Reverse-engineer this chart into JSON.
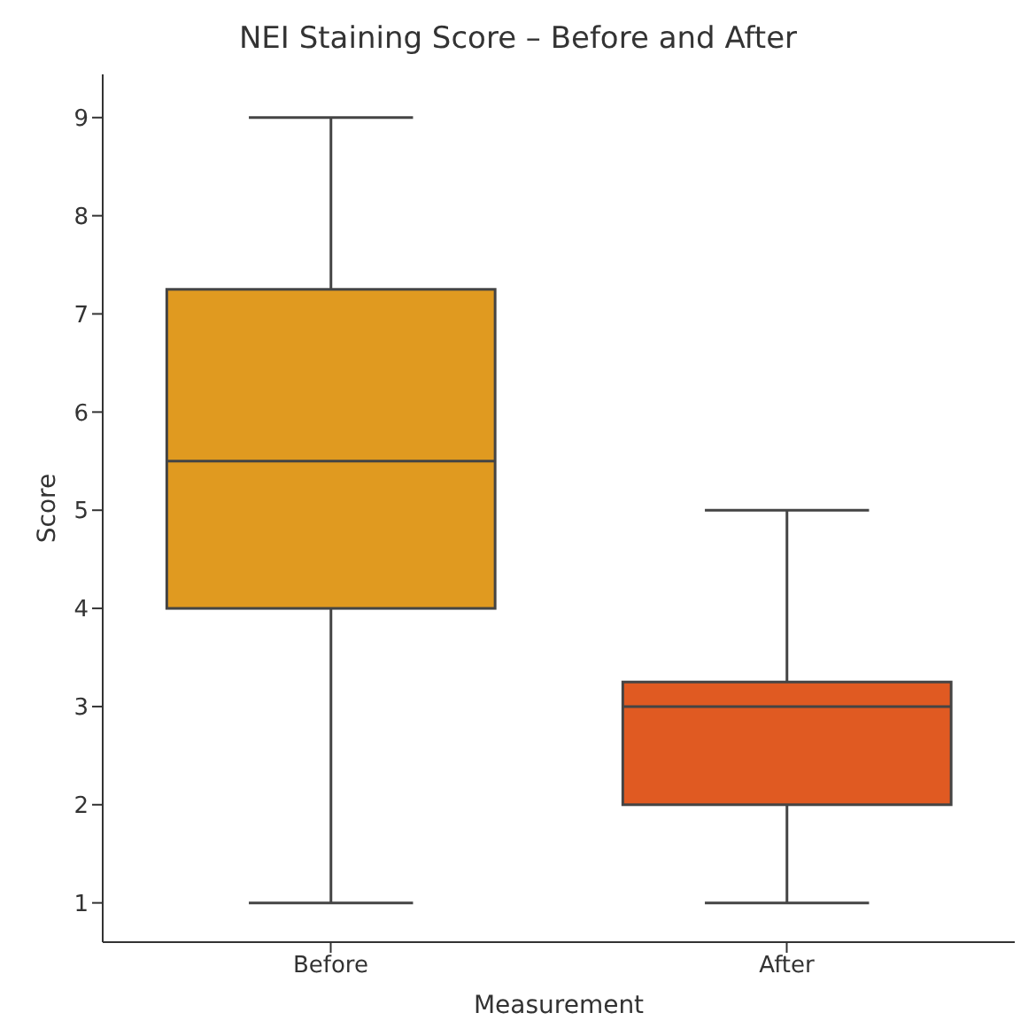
{
  "chart_data": {
    "type": "box",
    "title": "NEI Staining Score – Before and After",
    "xlabel": "Measurement",
    "ylabel": "Score",
    "categories": [
      "Before",
      "After"
    ],
    "colors": [
      "#e09a20",
      "#e05a22"
    ],
    "boxes": [
      {
        "low": 1,
        "q1": 4,
        "median": 5.5,
        "q3": 7.25,
        "high": 9
      },
      {
        "low": 1,
        "q1": 2,
        "median": 3,
        "q3": 3.25,
        "high": 5
      }
    ],
    "ylim": [
      0.6,
      9.44
    ],
    "yticks": [
      1,
      2,
      3,
      4,
      5,
      6,
      7,
      8,
      9
    ],
    "grid": false
  }
}
